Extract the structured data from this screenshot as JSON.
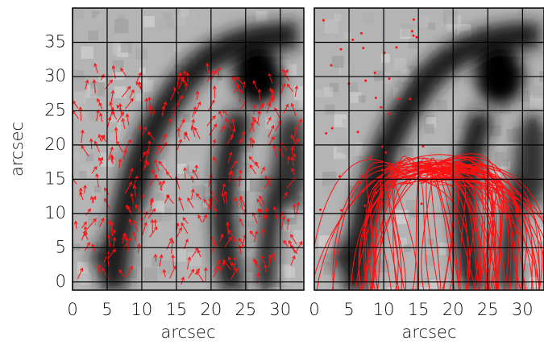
{
  "chart_data": [
    {
      "type": "image",
      "xlabel": "arcsec",
      "ylabel": "arcsec",
      "xlim": [
        0,
        33.4
      ],
      "ylim": [
        -1.2,
        40
      ],
      "xticks": [
        0,
        5,
        10,
        15,
        20,
        25,
        30
      ],
      "yticks": [
        0,
        5,
        10,
        15,
        20,
        25,
        30,
        35
      ],
      "grid": true,
      "ytick_labels": true
    },
    {
      "type": "image",
      "xlabel": "arcsec",
      "xlim": [
        0,
        33.1
      ],
      "ylim": [
        -1.2,
        40
      ],
      "xticks": [
        0,
        5,
        10,
        15,
        20,
        25,
        30
      ],
      "yticks": [
        0,
        5,
        10,
        15,
        20,
        25,
        30,
        35
      ],
      "grid": true,
      "ytick_labels": false
    }
  ]
}
